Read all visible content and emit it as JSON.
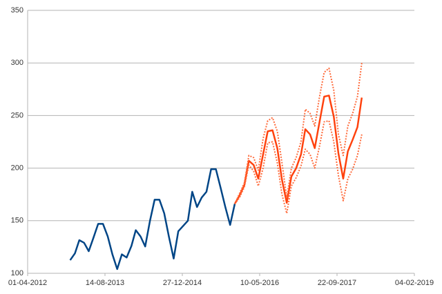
{
  "chart_data": {
    "type": "line",
    "xlim": [
      "2012-04-01",
      "2019-02-04"
    ],
    "xticks": [
      {
        "value": "2012-04-01",
        "label": "01-04-2012"
      },
      {
        "value": "2013-08-14",
        "label": "14-08-2013"
      },
      {
        "value": "2014-12-27",
        "label": "27-12-2014"
      },
      {
        "value": "2016-05-10",
        "label": "10-05-2016"
      },
      {
        "value": "2017-09-22",
        "label": "22-09-2017"
      },
      {
        "value": "2019-02-04",
        "label": "04-02-2019"
      }
    ],
    "ylim": [
      100,
      350
    ],
    "yticks": [
      100,
      150,
      200,
      250,
      300,
      350
    ],
    "grid": true,
    "series": [
      {
        "color": "#004586",
        "style": "solid",
        "width": 2.5,
        "x": [
          "2013-01-01",
          "2013-02-01",
          "2013-03-01",
          "2013-04-01",
          "2013-05-01",
          "2013-06-01",
          "2013-07-01",
          "2013-08-01",
          "2013-09-01",
          "2013-10-01",
          "2013-11-01",
          "2013-12-01",
          "2014-01-01",
          "2014-02-01",
          "2014-03-01",
          "2014-04-01",
          "2014-05-01",
          "2014-06-01",
          "2014-07-01",
          "2014-08-01",
          "2014-09-01",
          "2014-10-01",
          "2014-11-01",
          "2014-12-01",
          "2015-01-01",
          "2015-02-01",
          "2015-03-01",
          "2015-04-01",
          "2015-05-01",
          "2015-06-01",
          "2015-07-01",
          "2015-08-01",
          "2015-09-01",
          "2015-10-01",
          "2015-11-01",
          "2015-12-01"
        ],
        "values": [
          112.5,
          119,
          131.5,
          129,
          121,
          134,
          147,
          147,
          135,
          118,
          104,
          118,
          115,
          126,
          141,
          135,
          125.5,
          150,
          170,
          170,
          157,
          135,
          114,
          140,
          145,
          150,
          177.5,
          163,
          172,
          177.5,
          199,
          199,
          181,
          163,
          146,
          166
        ]
      },
      {
        "color": "#ff420e",
        "style": "solid",
        "width": 2.5,
        "x": [
          "2015-12-01",
          "2016-01-01",
          "2016-02-01",
          "2016-03-01",
          "2016-04-01",
          "2016-05-01",
          "2016-06-01",
          "2016-07-01",
          "2016-08-01",
          "2016-09-01",
          "2016-10-01",
          "2016-11-01",
          "2016-12-01",
          "2017-01-01",
          "2017-02-01",
          "2017-03-01",
          "2017-04-01",
          "2017-05-01",
          "2017-06-01",
          "2017-07-01",
          "2017-08-01",
          "2017-09-01",
          "2017-10-01",
          "2017-11-01",
          "2017-12-01",
          "2018-01-01",
          "2018-02-01",
          "2018-03-01"
        ],
        "values": [
          166,
          174,
          184,
          207,
          203,
          190,
          213,
          235,
          236,
          219,
          189,
          167,
          192,
          200,
          213,
          237,
          232,
          219,
          244,
          268,
          269,
          249,
          214,
          190,
          216,
          227,
          239,
          267
        ]
      },
      {
        "color": "#ff6a3a",
        "style": "dotted",
        "width": 2,
        "x": [
          "2015-12-01",
          "2016-01-01",
          "2016-02-01",
          "2016-03-01",
          "2016-04-01",
          "2016-05-01",
          "2016-06-01",
          "2016-07-01",
          "2016-08-01",
          "2016-09-01",
          "2016-10-01",
          "2016-11-01",
          "2016-12-01",
          "2017-01-01",
          "2017-02-01",
          "2017-03-01",
          "2017-04-01",
          "2017-05-01",
          "2017-06-01",
          "2017-07-01",
          "2017-08-01",
          "2017-09-01",
          "2017-10-01",
          "2017-11-01",
          "2017-12-01",
          "2018-01-01",
          "2018-02-01",
          "2018-03-01"
        ],
        "values": [
          166,
          176,
          186,
          212,
          210,
          198,
          228,
          245,
          248,
          235,
          205,
          172,
          200,
          210,
          225,
          256,
          252,
          240,
          268,
          291,
          295,
          274,
          232,
          212,
          240,
          252,
          268,
          300
        ]
      },
      {
        "color": "#ff6a3a",
        "style": "dotted",
        "width": 2,
        "x": [
          "2015-12-01",
          "2016-01-01",
          "2016-02-01",
          "2016-03-01",
          "2016-04-01",
          "2016-05-01",
          "2016-06-01",
          "2016-07-01",
          "2016-08-01",
          "2016-09-01",
          "2016-10-01",
          "2016-11-01",
          "2016-12-01",
          "2017-01-01",
          "2017-02-01",
          "2017-03-01",
          "2017-04-01",
          "2017-05-01",
          "2017-06-01",
          "2017-07-01",
          "2017-08-01",
          "2017-09-01",
          "2017-10-01",
          "2017-11-01",
          "2017-12-01",
          "2018-01-01",
          "2018-02-01",
          "2018-03-01"
        ],
        "values": [
          166,
          172,
          182,
          203,
          197,
          183,
          200,
          224,
          225,
          205,
          175,
          157,
          183,
          191,
          202,
          218,
          213,
          200,
          221,
          244,
          245,
          225,
          193,
          169,
          190,
          199,
          212,
          232
        ]
      }
    ]
  }
}
